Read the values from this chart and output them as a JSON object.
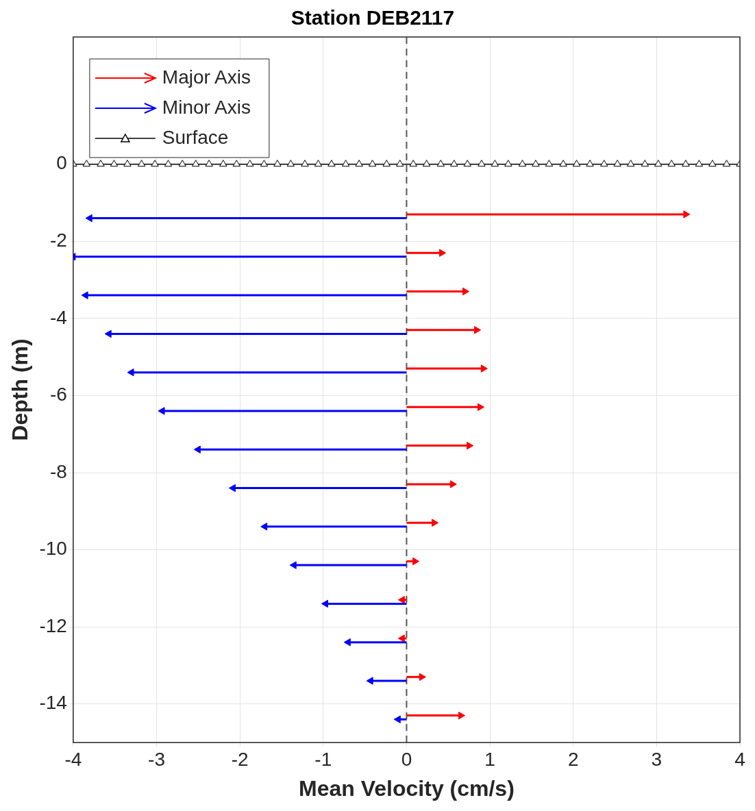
{
  "chart_data": {
    "type": "scatter",
    "title": "Station DEB2117",
    "xlabel": "Mean Velocity (cm/s)",
    "ylabel": "Depth (m)",
    "xlim": [
      -4,
      4
    ],
    "xticks": [
      -4,
      -3,
      -2,
      -1,
      0,
      1,
      2,
      3,
      4
    ],
    "ylim": [
      -15,
      3.3
    ],
    "yticks": [
      0,
      -2,
      -4,
      -6,
      -8,
      -10,
      -12,
      -14
    ],
    "grid": true,
    "legend": "top left",
    "ref_lines": [
      {
        "axis": "x",
        "value": 0,
        "line_style": "dashed",
        "color": "#555555"
      }
    ],
    "series": [
      {
        "name": "Major Axis",
        "type": "scatter",
        "marker": "triangle",
        "color": "#ff0000",
        "x": [
          3.35,
          0.42,
          0.7,
          0.84,
          0.92,
          0.88,
          0.75,
          0.55,
          0.33,
          0.1,
          -0.05,
          -0.05,
          0.18,
          0.65
        ],
        "values": [
          -1.3,
          -2.3,
          -3.3,
          -4.3,
          -5.3,
          -6.3,
          -7.3,
          -8.3,
          -9.3,
          -10.3,
          -11.3,
          -12.3,
          -13.3,
          -14.3
        ],
        "xerrors": [
          [
            0,
            3.35
          ],
          [
            0,
            0.42
          ],
          [
            0,
            0.7
          ],
          [
            0,
            0.84
          ],
          [
            0,
            0.92
          ],
          [
            0,
            0.88
          ],
          [
            0,
            0.75
          ],
          [
            0,
            0.55
          ],
          [
            0,
            0.33
          ],
          [
            0,
            0.1
          ],
          [
            -0.05,
            0
          ],
          [
            -0.05,
            0
          ],
          [
            0,
            0.18
          ],
          [
            0,
            0.65
          ]
        ]
      },
      {
        "name": "Minor Axis",
        "type": "scatter",
        "marker": "triangle",
        "color": "#0000ff",
        "x": [
          -3.8,
          -4.0,
          -3.85,
          -3.57,
          -3.3,
          -2.93,
          -2.5,
          -2.08,
          -1.7,
          -1.35,
          -0.97,
          -0.7,
          -0.43,
          -0.1
        ],
        "values": [
          -1.4,
          -2.4,
          -3.4,
          -4.4,
          -5.4,
          -6.4,
          -7.4,
          -8.4,
          -9.4,
          -10.4,
          -11.4,
          -12.4,
          -13.4,
          -14.4
        ],
        "xerrors": [
          [
            -3.8,
            0
          ],
          [
            -4.0,
            0
          ],
          [
            -3.85,
            0
          ],
          [
            -3.57,
            0
          ],
          [
            -3.3,
            0
          ],
          [
            -2.93,
            0
          ],
          [
            -2.5,
            0
          ],
          [
            -2.08,
            0
          ],
          [
            -1.7,
            0
          ],
          [
            -1.35,
            0
          ],
          [
            -0.97,
            0
          ],
          [
            -0.7,
            0
          ],
          [
            -0.43,
            0
          ],
          [
            -0.1,
            0
          ]
        ]
      },
      {
        "name": "Surface",
        "type": "line",
        "color": "#000000",
        "marker": "triangle",
        "x": [
          -4,
          -3.84,
          -3.67,
          -3.51,
          -3.35,
          -3.18,
          -3.02,
          -2.86,
          -2.69,
          -2.53,
          -2.37,
          -2.2,
          -2.04,
          -1.88,
          -1.71,
          -1.55,
          -1.39,
          -1.22,
          -1.06,
          -0.9,
          -0.73,
          -0.57,
          -0.41,
          -0.24,
          -0.08,
          0.08,
          0.24,
          0.41,
          0.57,
          0.73,
          0.9,
          1.06,
          1.22,
          1.39,
          1.55,
          1.71,
          1.88,
          2.04,
          2.2,
          2.37,
          2.53,
          2.69,
          2.86,
          3.02,
          3.18,
          3.35,
          3.51,
          3.67,
          3.84,
          4
        ],
        "values": [
          0,
          0,
          0,
          0,
          0,
          0,
          0,
          0,
          0,
          0,
          0,
          0,
          0,
          0,
          0,
          0,
          0,
          0,
          0,
          0,
          0,
          0,
          0,
          0,
          0,
          0,
          0,
          0,
          0,
          0,
          0,
          0,
          0,
          0,
          0,
          0,
          0,
          0,
          0,
          0,
          0,
          0,
          0,
          0,
          0,
          0,
          0,
          0,
          0,
          0
        ]
      }
    ]
  }
}
